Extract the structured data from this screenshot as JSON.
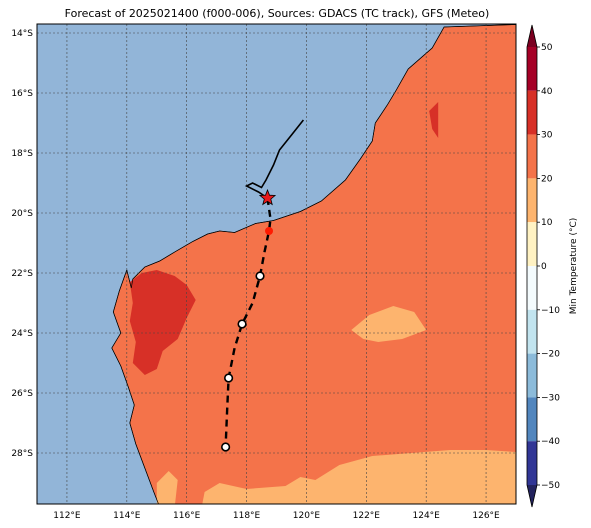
{
  "title": "Forecast of 2025021400 (f000-006), Sources: GDACS (TC track), GFS (Meteo)",
  "map": {
    "lon_range": [
      111,
      127
    ],
    "lat_range": [
      -29.7,
      -13.7
    ],
    "lon_ticks": [
      112,
      114,
      116,
      118,
      120,
      122,
      124,
      126
    ],
    "lon_tick_labels": [
      "112°E",
      "114°E",
      "116°E",
      "118°E",
      "120°E",
      "122°E",
      "124°E",
      "126°E"
    ],
    "lat_ticks": [
      -14,
      -16,
      -18,
      -20,
      -22,
      -24,
      -26,
      -28
    ],
    "lat_tick_labels": [
      "14°S",
      "16°S",
      "18°S",
      "20°S",
      "22°S",
      "24°S",
      "26°S",
      "28°S"
    ],
    "grid": true,
    "colors": {
      "ocean": "#92b5d8",
      "land_20_30": "#f4734a",
      "land_30_40": "#d73027",
      "land_10_20": "#fdb46e",
      "coast": "#000000"
    }
  },
  "colorbar": {
    "label": "Min Temperature (°C)",
    "range": [
      -50,
      50
    ],
    "ticks": [
      50,
      40,
      30,
      20,
      10,
      0,
      -10,
      -20,
      -30,
      -40,
      -50
    ],
    "tick_labels": [
      "50",
      "40",
      "30",
      "20",
      "10",
      "0",
      "−10",
      "−20",
      "−30",
      "−40",
      "−50"
    ],
    "bands": [
      {
        "from": 40,
        "to": 50,
        "color": "#a50026"
      },
      {
        "from": 30,
        "to": 40,
        "color": "#d73027"
      },
      {
        "from": 20,
        "to": 30,
        "color": "#f4734a"
      },
      {
        "from": 10,
        "to": 20,
        "color": "#fdb46e"
      },
      {
        "from": 0,
        "to": 10,
        "color": "#fff2c3"
      },
      {
        "from": -10,
        "to": 0,
        "color": "#f4fbfd"
      },
      {
        "from": -20,
        "to": -10,
        "color": "#c2e4ef"
      },
      {
        "from": -30,
        "to": -20,
        "color": "#8cbbda"
      },
      {
        "from": -40,
        "to": -30,
        "color": "#5286be"
      },
      {
        "from": -50,
        "to": -40,
        "color": "#313695"
      }
    ],
    "extend_top_color": "#7a0020",
    "extend_bottom_color": "#23235e"
  },
  "track": {
    "past": [
      [
        119.9,
        -16.9
      ],
      [
        119.5,
        -17.4
      ],
      [
        119.1,
        -17.9
      ],
      [
        118.9,
        -18.4
      ],
      [
        118.65,
        -18.9
      ],
      [
        118.5,
        -19.15
      ],
      [
        118.2,
        -19.0
      ],
      [
        118.0,
        -19.1
      ],
      [
        118.4,
        -19.3
      ],
      [
        118.7,
        -19.5
      ]
    ],
    "current": [
      118.7,
      -19.5
    ],
    "forecast": [
      [
        118.7,
        -19.5
      ],
      [
        118.8,
        -20.2
      ],
      [
        118.75,
        -20.6
      ],
      [
        118.6,
        -21.3
      ],
      [
        118.45,
        -22.1
      ],
      [
        118.2,
        -23.0
      ],
      [
        117.85,
        -23.7
      ],
      [
        117.6,
        -24.5
      ],
      [
        117.4,
        -25.5
      ],
      [
        117.35,
        -26.6
      ],
      [
        117.3,
        -27.8
      ]
    ],
    "red_points": [
      [
        118.75,
        -20.6
      ]
    ],
    "circle_points": [
      [
        118.45,
        -22.1
      ],
      [
        117.85,
        -23.7
      ],
      [
        117.4,
        -25.5
      ],
      [
        117.3,
        -27.8
      ]
    ]
  }
}
